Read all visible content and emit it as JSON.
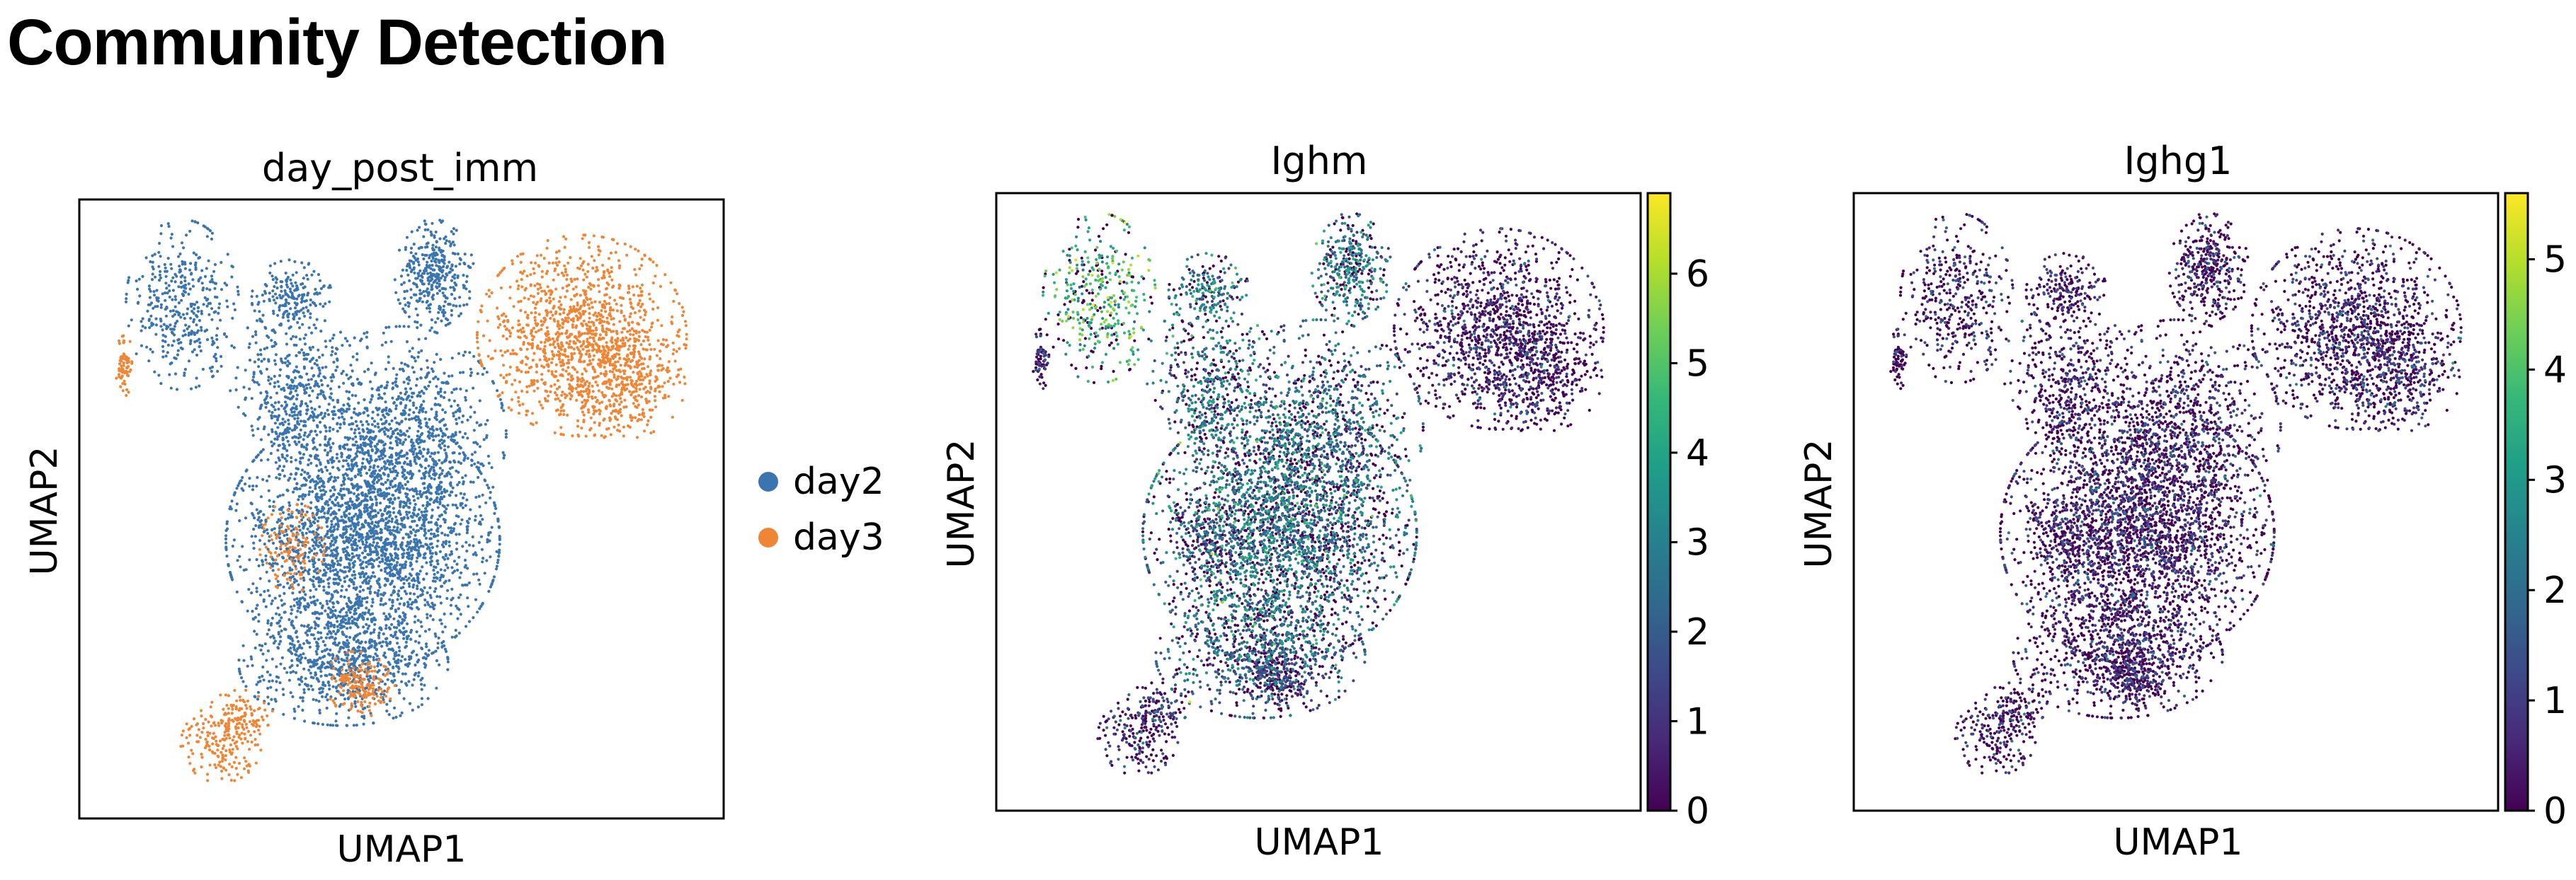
{
  "page": {
    "title": "Community Detection"
  },
  "chart_data": [
    {
      "type": "scatter",
      "title": "day_post_imm",
      "xlabel": "UMAP1",
      "ylabel": "UMAP2",
      "color_by": "categorical",
      "legend": {
        "placement": "right",
        "entries": [
          {
            "name": "day2",
            "color": "#3b75af"
          },
          {
            "name": "day3",
            "color": "#ef8636"
          }
        ]
      },
      "grid": false,
      "ticks": false
    },
    {
      "type": "scatter",
      "title": "Ighm",
      "xlabel": "UMAP1",
      "ylabel": "UMAP2",
      "color_by": "continuous",
      "colormap": "viridis",
      "colorbar": {
        "ticks": [
          "0",
          "1",
          "2",
          "3",
          "4",
          "5",
          "6"
        ],
        "range": [
          0,
          6.9
        ]
      },
      "grid": false,
      "ticks": false
    },
    {
      "type": "scatter",
      "title": "Ighg1",
      "xlabel": "UMAP1",
      "ylabel": "UMAP2",
      "color_by": "continuous",
      "colormap": "viridis",
      "colorbar": {
        "ticks": [
          "0",
          "1",
          "2",
          "3",
          "4",
          "5"
        ],
        "range": [
          0,
          5.6
        ]
      },
      "grid": false,
      "ticks": false
    }
  ],
  "colors": {
    "day2": "#3b75af",
    "day3": "#ef8636",
    "viridis": [
      "#440154",
      "#482878",
      "#3e4989",
      "#31688e",
      "#26828e",
      "#1f9e89",
      "#35b779",
      "#6ece58",
      "#b5de2b",
      "#fde725"
    ]
  }
}
